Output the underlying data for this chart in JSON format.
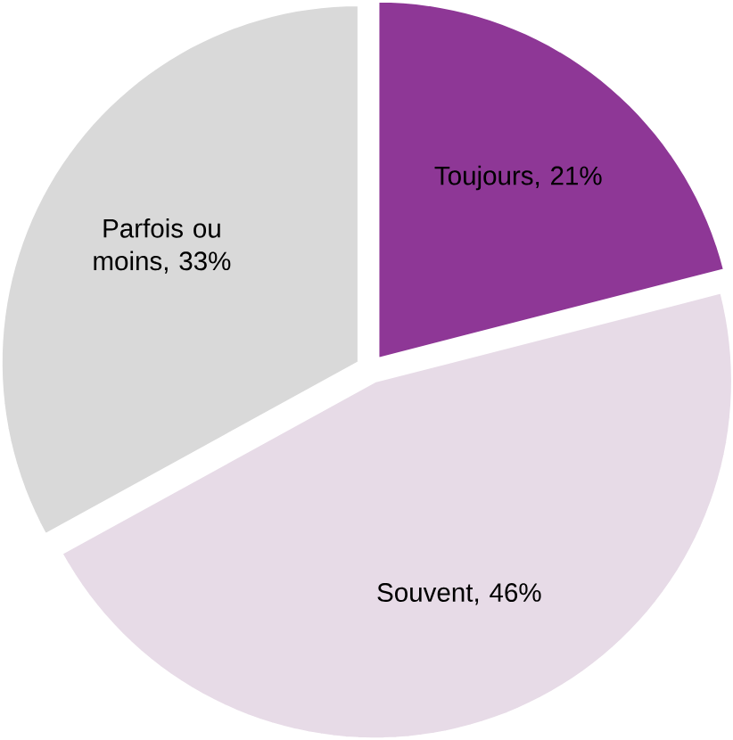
{
  "chart_data": {
    "type": "pie",
    "categories": [
      "Toujours, 21%",
      "Souvent, 46%",
      "Parfois ou moins, 33%"
    ],
    "values": [
      21,
      46,
      33
    ],
    "colors": [
      "#8e3796",
      "#e7dbe7",
      "#d9d9d9"
    ]
  }
}
